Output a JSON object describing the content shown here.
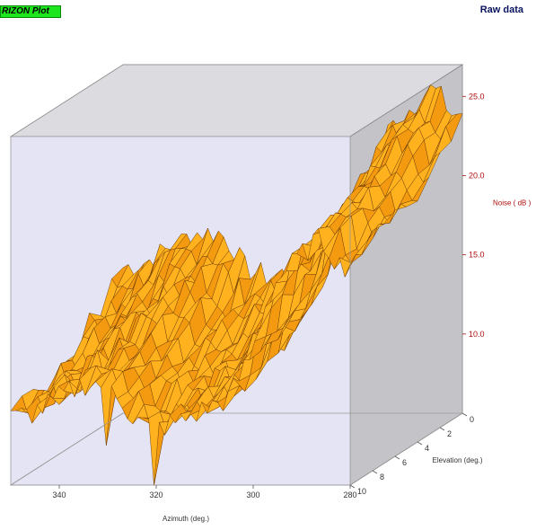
{
  "header": {
    "plot_badge": "RIZON Plot",
    "raw_label": "Raw data"
  },
  "colors": {
    "badge_bg": "#1ee61e",
    "back_wall": "#d4d4d8",
    "front_wall": "#e4e4f4",
    "surface_fill": "#ffb21e",
    "surface_fill_dark": "#f49a10",
    "surface_mesh": "#6a3a06",
    "noise_axis": "#b01010"
  },
  "chart_data": {
    "type": "surface",
    "title": "",
    "x_axis": {
      "label": "Azimuth (deg.)",
      "ticks": [
        "340",
        "320",
        "300",
        "280"
      ],
      "range": [
        350,
        280
      ]
    },
    "y_axis": {
      "label": "Elevation (deg.)",
      "ticks": [
        "0",
        "2",
        "4",
        "6",
        "8",
        "10"
      ],
      "range": [
        0,
        10
      ]
    },
    "z_axis": {
      "label": "Noise ( dB )",
      "ticks": [
        "10.0",
        "15.0",
        "20.0",
        "25.0"
      ],
      "range": [
        5,
        27
      ]
    },
    "profile": {
      "azimuth": [
        350,
        345,
        340,
        335,
        330,
        327,
        325,
        320,
        315,
        310,
        305,
        300,
        298,
        295,
        290,
        287,
        285,
        282,
        280
      ],
      "noise_db": [
        10.2,
        10.6,
        11.5,
        12.4,
        12.4,
        11.4,
        10.2,
        9.6,
        10.0,
        10.8,
        11.5,
        14.5,
        17.0,
        19.0,
        20.5,
        21.5,
        21.2,
        19.8,
        20.0
      ]
    },
    "elevation_rows": [
      0,
      1,
      2,
      3,
      4,
      5,
      6,
      7,
      8,
      9,
      10
    ],
    "elevation_offsets_db": [
      4.0,
      3.2,
      2.4,
      1.7,
      1.0,
      0.4,
      0.0,
      -0.3,
      -0.6,
      -0.8,
      -1.0
    ],
    "noise_amplitude_db": 0.8,
    "spikes": [
      {
        "azimuth": 320,
        "elevation": 10,
        "noise_db": 1.0
      },
      {
        "azimuth": 330,
        "elevation": 10,
        "noise_db": 7.5
      }
    ]
  }
}
